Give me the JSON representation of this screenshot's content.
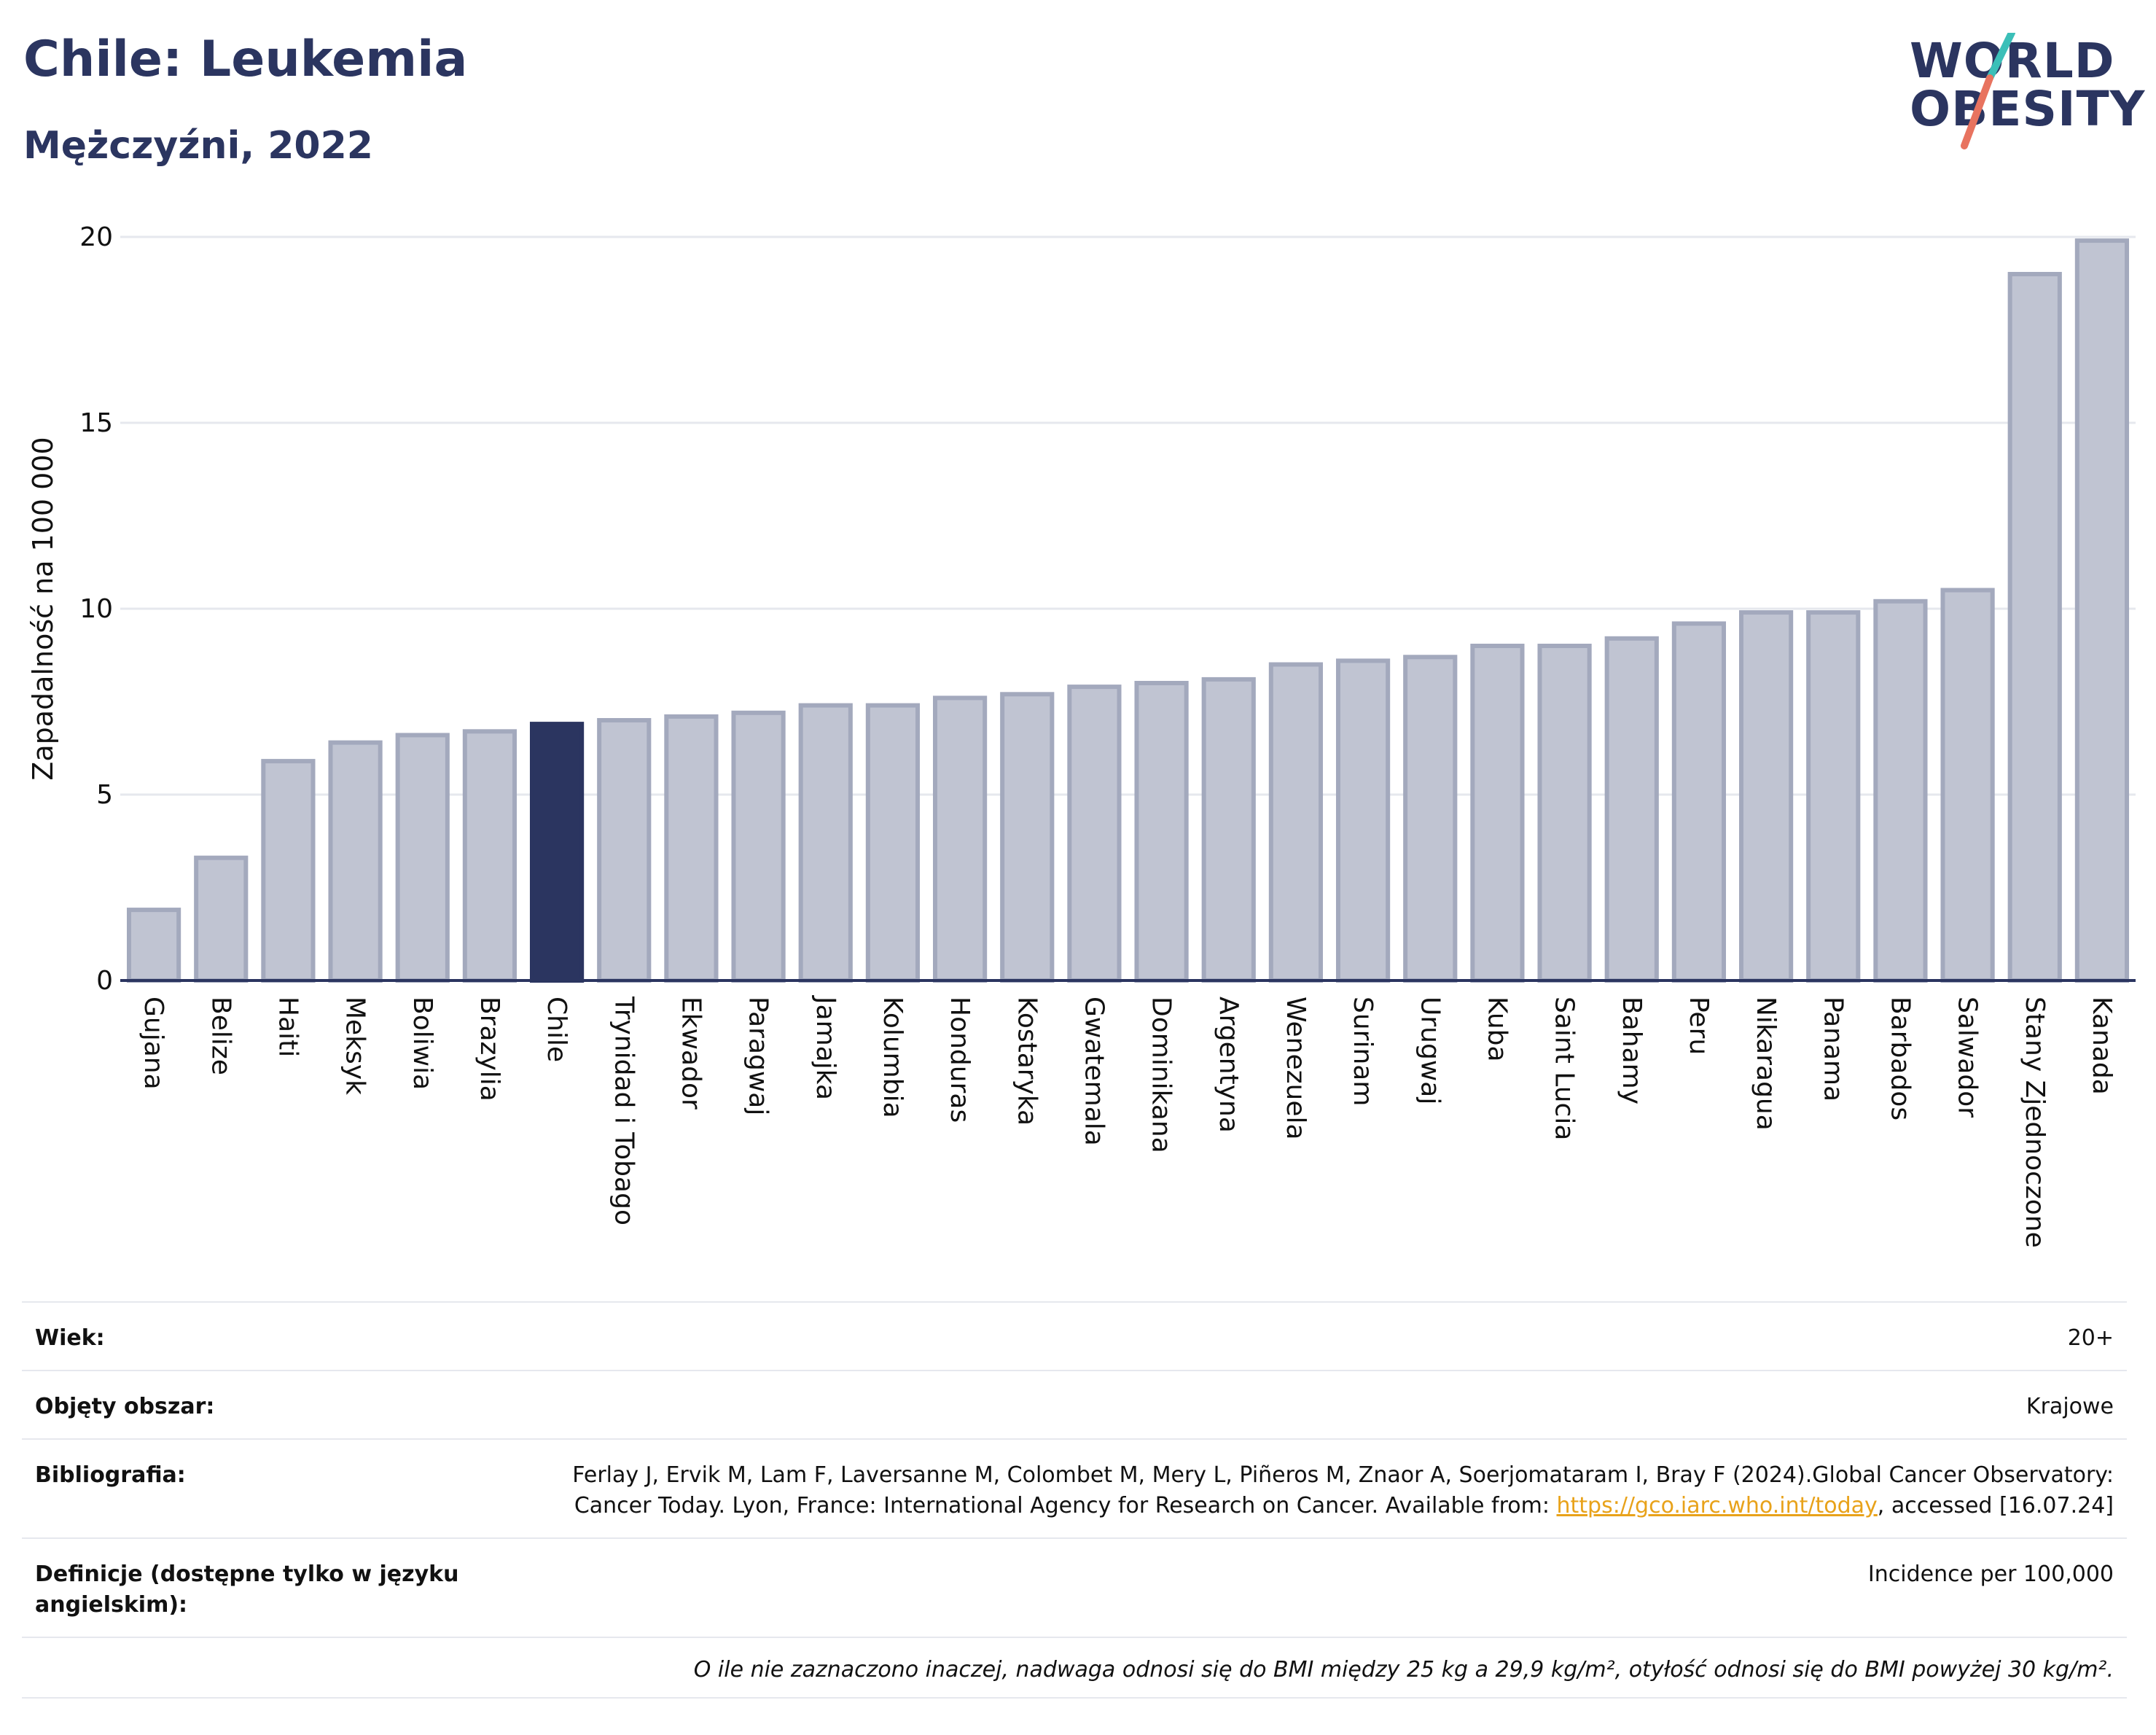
{
  "header": {
    "title": "Chile: Leukemia",
    "subtitle": "Mężczyźni, 2022"
  },
  "logo": {
    "line1": "WORLD",
    "line2": "OBESITY"
  },
  "colors": {
    "bar": "#c0c4d2",
    "bar_stroke": "#a3a9bd",
    "highlight": "#2b3560",
    "grid": "#e6e8ee",
    "axis": "#2b3560"
  },
  "chart_data": {
    "type": "bar",
    "ylabel": "Zapadalność na 100 000",
    "ylim": [
      0,
      20
    ],
    "yticks": [
      0,
      5,
      10,
      15,
      20
    ],
    "grid": true,
    "highlight": "Chile",
    "categories": [
      "Gujana",
      "Belize",
      "Haiti",
      "Meksyk",
      "Boliwia",
      "Brazylia",
      "Chile",
      "Trynidad i Tobago",
      "Ekwador",
      "Paragwaj",
      "Jamajka",
      "Kolumbia",
      "Honduras",
      "Kostaryka",
      "Gwatemala",
      "Dominikana",
      "Argentyna",
      "Wenezuela",
      "Surinam",
      "Urugwaj",
      "Kuba",
      "Saint Lucia",
      "Bahamy",
      "Peru",
      "Nikaragua",
      "Panama",
      "Barbados",
      "Salwador",
      "Stany Zjednoczone",
      "Kanada"
    ],
    "values": [
      1.9,
      3.3,
      5.9,
      6.4,
      6.6,
      6.7,
      6.9,
      7.0,
      7.1,
      7.2,
      7.4,
      7.4,
      7.6,
      7.7,
      7.9,
      8.0,
      8.1,
      8.5,
      8.6,
      8.7,
      9.0,
      9.0,
      9.2,
      9.6,
      9.9,
      9.9,
      10.2,
      10.5,
      19.0,
      19.9
    ]
  },
  "meta": {
    "age_label": "Wiek:",
    "age_value": "20+",
    "area_label": "Objęty obszar:",
    "area_value": "Krajowe",
    "bib_label": "Bibliografia:",
    "bib_value": "Ferlay J, Ervik M, Lam F, Laversanne M, Colombet M, Mery L, Piñeros M, Znaor A, Soerjomataram I, Bray F (2024).Global Cancer Observatory: Cancer Today. Lyon, France: International Agency for Research on Cancer. Available from: ",
    "bib_link": "https://gco.iarc.who.int/today",
    "bib_after": ", accessed [16.07.24]",
    "def_label": "Definicje (dostępne tylko w języku angielskim):",
    "def_value": "Incidence per 100,000",
    "footnote": "O ile nie zaznaczono inaczej, nadwaga odnosi się do BMI między 25 kg a 29,9 kg/m², otyłość odnosi się do BMI powyżej 30 kg/m²."
  }
}
